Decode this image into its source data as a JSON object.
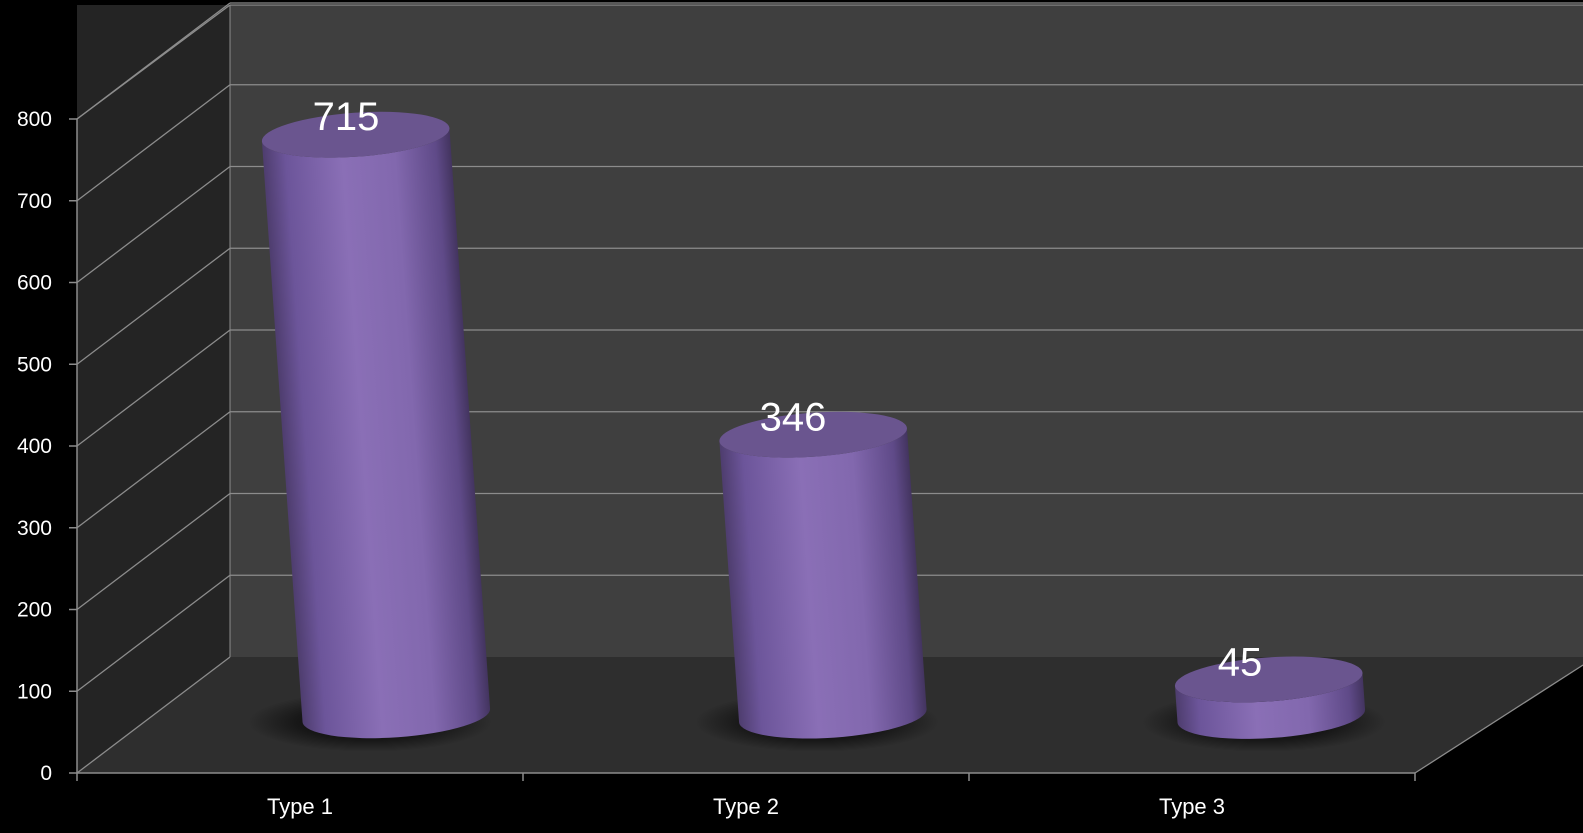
{
  "chart_data": {
    "type": "bar",
    "style": "3d-cylinder",
    "categories": [
      "Type 1",
      "Type 2",
      "Type 3"
    ],
    "series": [
      {
        "values": [
          715,
          346,
          45
        ]
      }
    ],
    "data_labels": [
      "715",
      "346",
      "45"
    ],
    "ylim": [
      0,
      800
    ],
    "yticks": [
      0,
      100,
      200,
      300,
      400,
      500,
      600,
      700,
      800
    ],
    "ytick_labels": [
      "0",
      "100",
      "200",
      "300",
      "400",
      "500",
      "600",
      "700",
      "800"
    ],
    "grid": true,
    "legend": "none",
    "title": "",
    "xlabel": "",
    "ylabel": "",
    "colors": {
      "background": "#000000",
      "back_wall": "#3f3f3f",
      "side_wall": "#242424",
      "floor": "#2e2e2e",
      "gridline": "#8c8c8c",
      "bar": "#8268ae",
      "bar_top": "#6a558f",
      "text": "#ffffff"
    }
  }
}
